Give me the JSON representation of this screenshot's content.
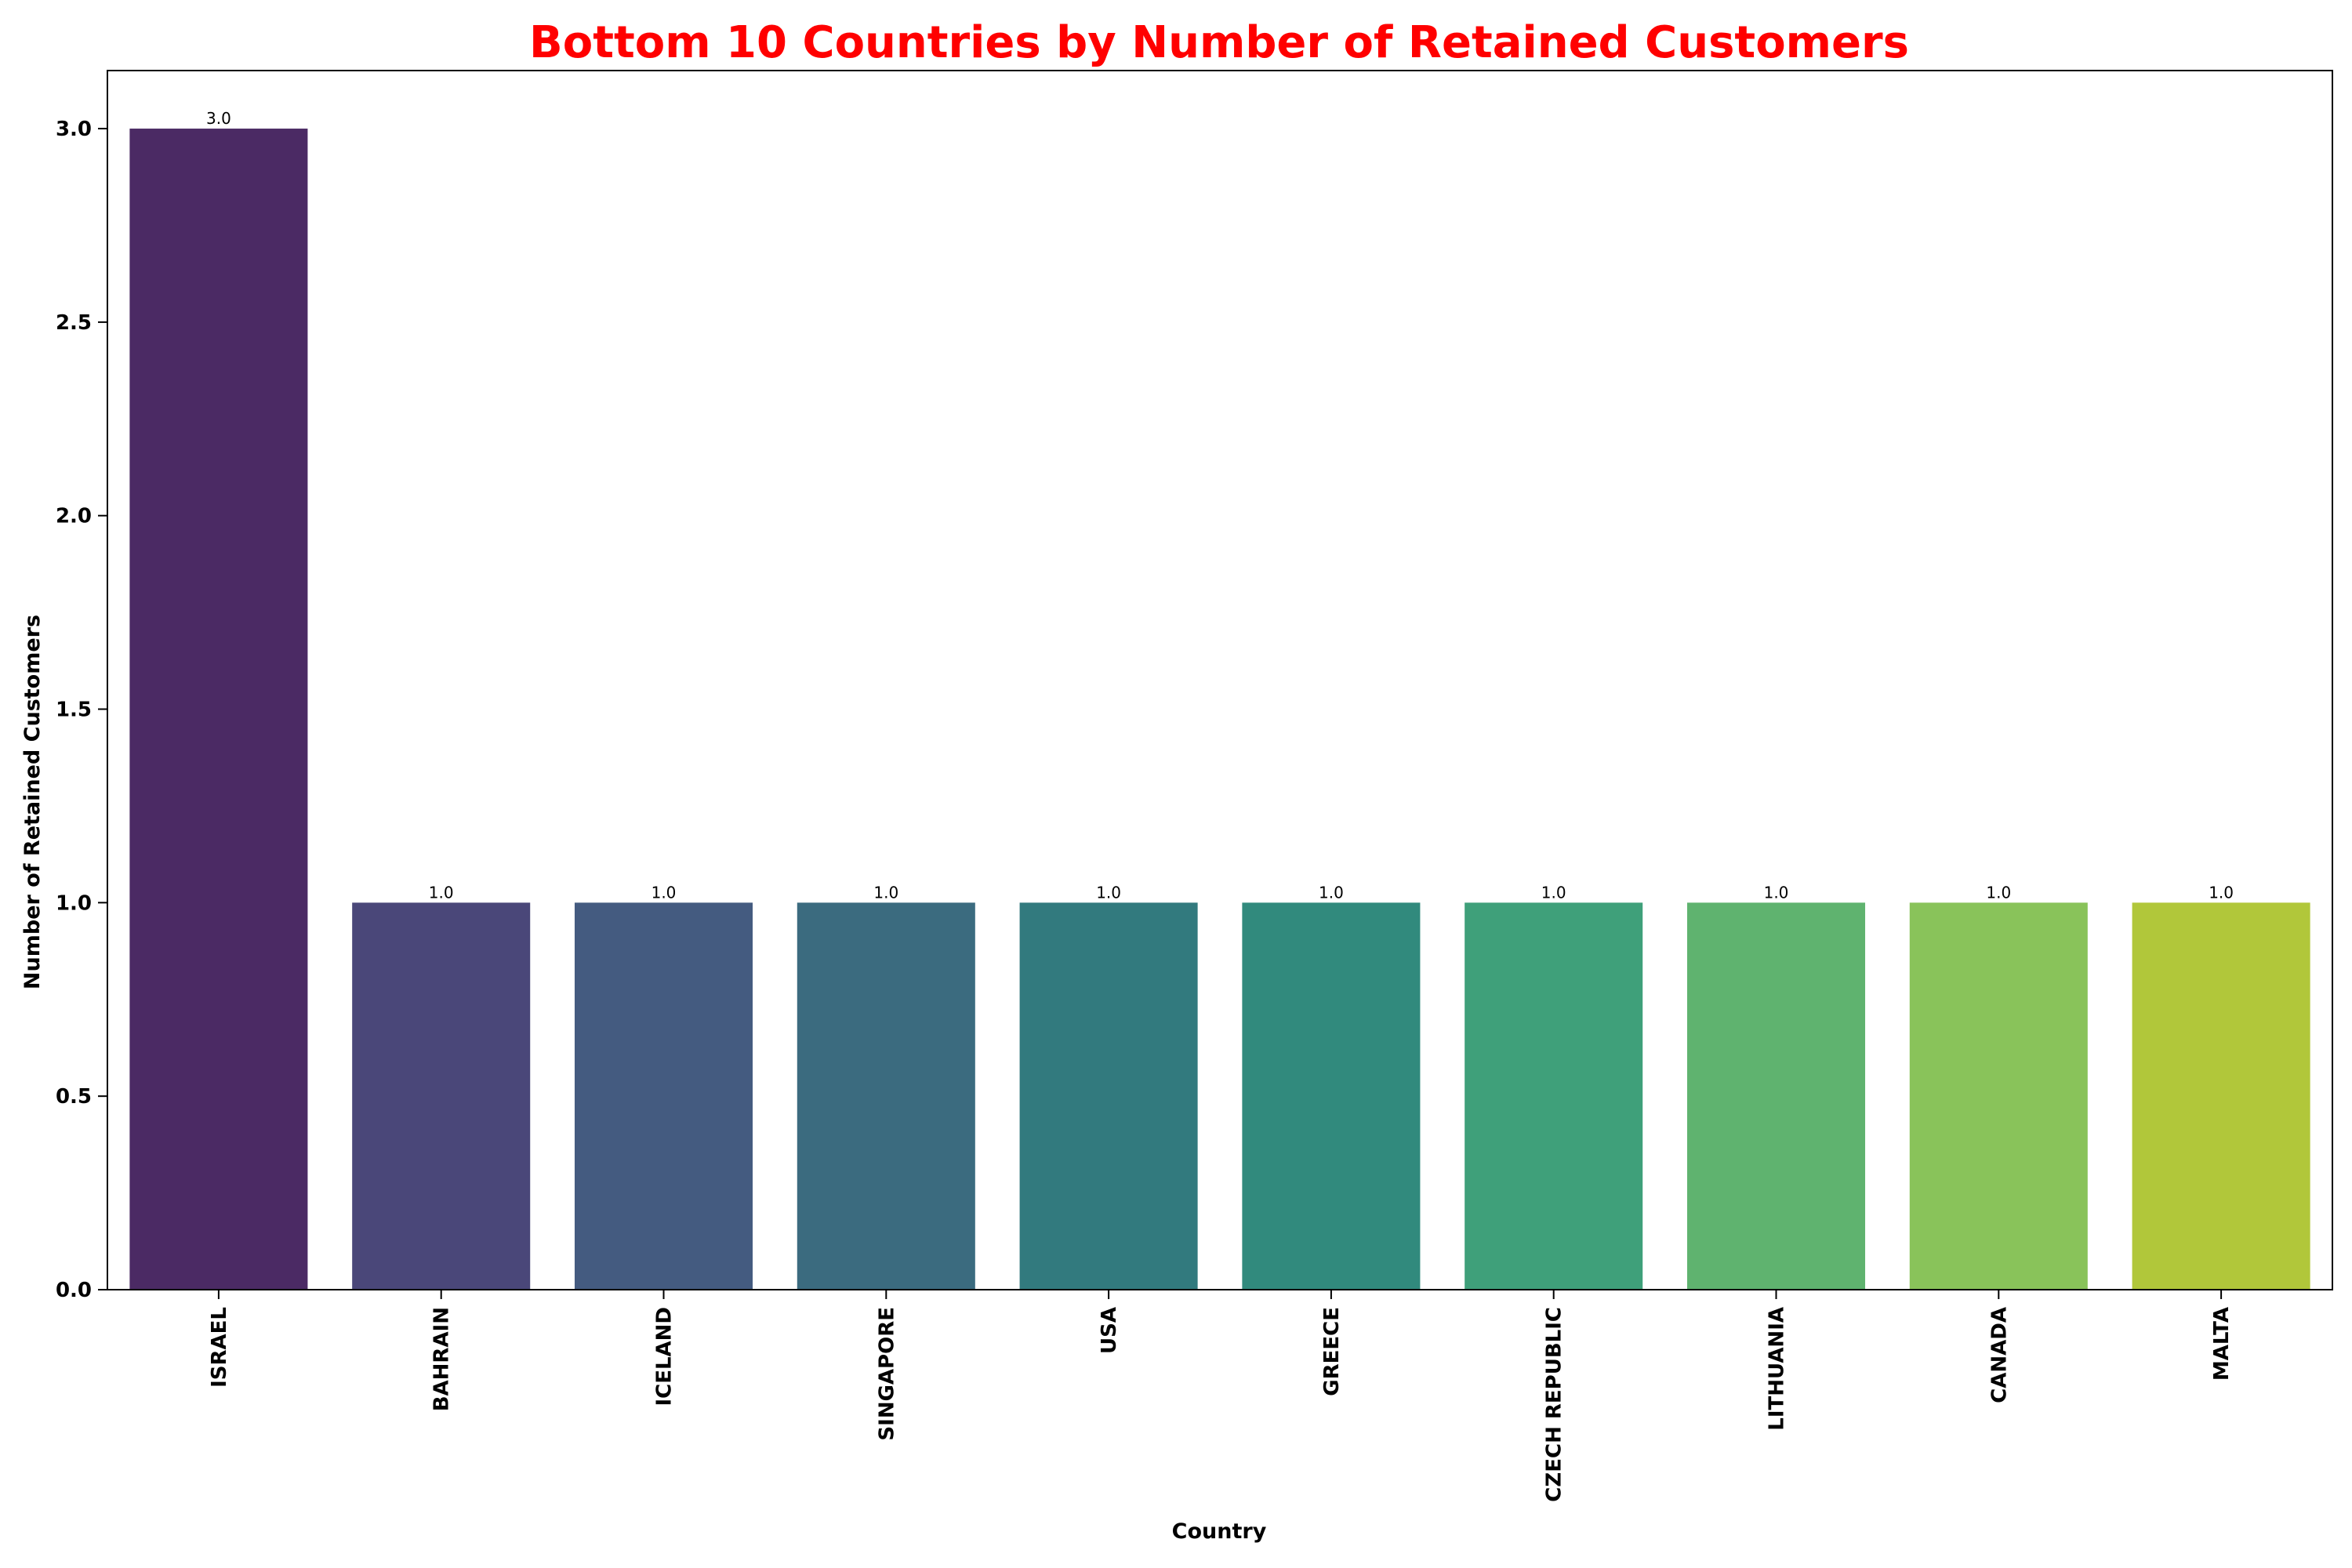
{
  "chart_data": {
    "type": "bar",
    "title": "Bottom 10 Countries by Number of Retained Customers",
    "title_color": "#ff0000",
    "xlabel": "Country",
    "ylabel": "Number of Retained Customers",
    "categories": [
      "ISRAEL",
      "BAHRAIN",
      "ICELAND",
      "SINGAPORE",
      "USA",
      "GREECE",
      "CZECH REPUBLIC",
      "LITHUANIA",
      "CANADA",
      "MALTA"
    ],
    "values": [
      3.0,
      1.0,
      1.0,
      1.0,
      1.0,
      1.0,
      1.0,
      1.0,
      1.0,
      1.0
    ],
    "data_labels": [
      "3.0",
      "1.0",
      "1.0",
      "1.0",
      "1.0",
      "1.0",
      "1.0",
      "1.0",
      "1.0",
      "1.0"
    ],
    "colors": [
      "#4b2a64",
      "#4a4779",
      "#445b80",
      "#3b6b7f",
      "#327a7e",
      "#318a7d",
      "#3fa07a",
      "#5fb36f",
      "#89c35a",
      "#b1c73a"
    ],
    "ylim": [
      0,
      3.15
    ],
    "yticks": [
      0.0,
      0.5,
      1.0,
      1.5,
      2.0,
      2.5,
      3.0
    ],
    "ytick_labels": [
      "0.0",
      "0.5",
      "1.0",
      "1.5",
      "2.0",
      "2.5",
      "3.0"
    ],
    "grid": false,
    "legend": "none"
  }
}
